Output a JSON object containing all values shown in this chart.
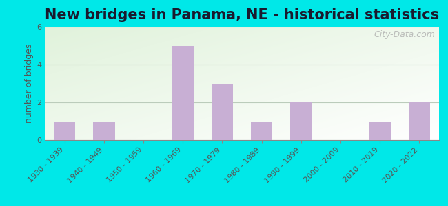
{
  "title": "New bridges in Panama, NE - historical statistics",
  "categories": [
    "1930 - 1939",
    "1940 - 1949",
    "1950 - 1959",
    "1960 - 1969",
    "1970 - 1979",
    "1980 - 1989",
    "1990 - 1999",
    "2000 - 2009",
    "2010 - 2019",
    "2020 - 2022"
  ],
  "values": [
    1,
    1,
    0,
    5,
    3,
    1,
    2,
    0,
    1,
    2
  ],
  "bar_color": "#c8afd4",
  "ylabel": "number of bridges",
  "ylim": [
    0,
    6
  ],
  "yticks": [
    0,
    2,
    4,
    6
  ],
  "background_outer": "#00e8e8",
  "background_inner_left": "#d4ecc8",
  "background_inner_right": "#f0f8ee",
  "grid_color": "#bbccbb",
  "title_fontsize": 15,
  "label_fontsize": 9,
  "tick_fontsize": 8,
  "watermark": "City-Data.com"
}
